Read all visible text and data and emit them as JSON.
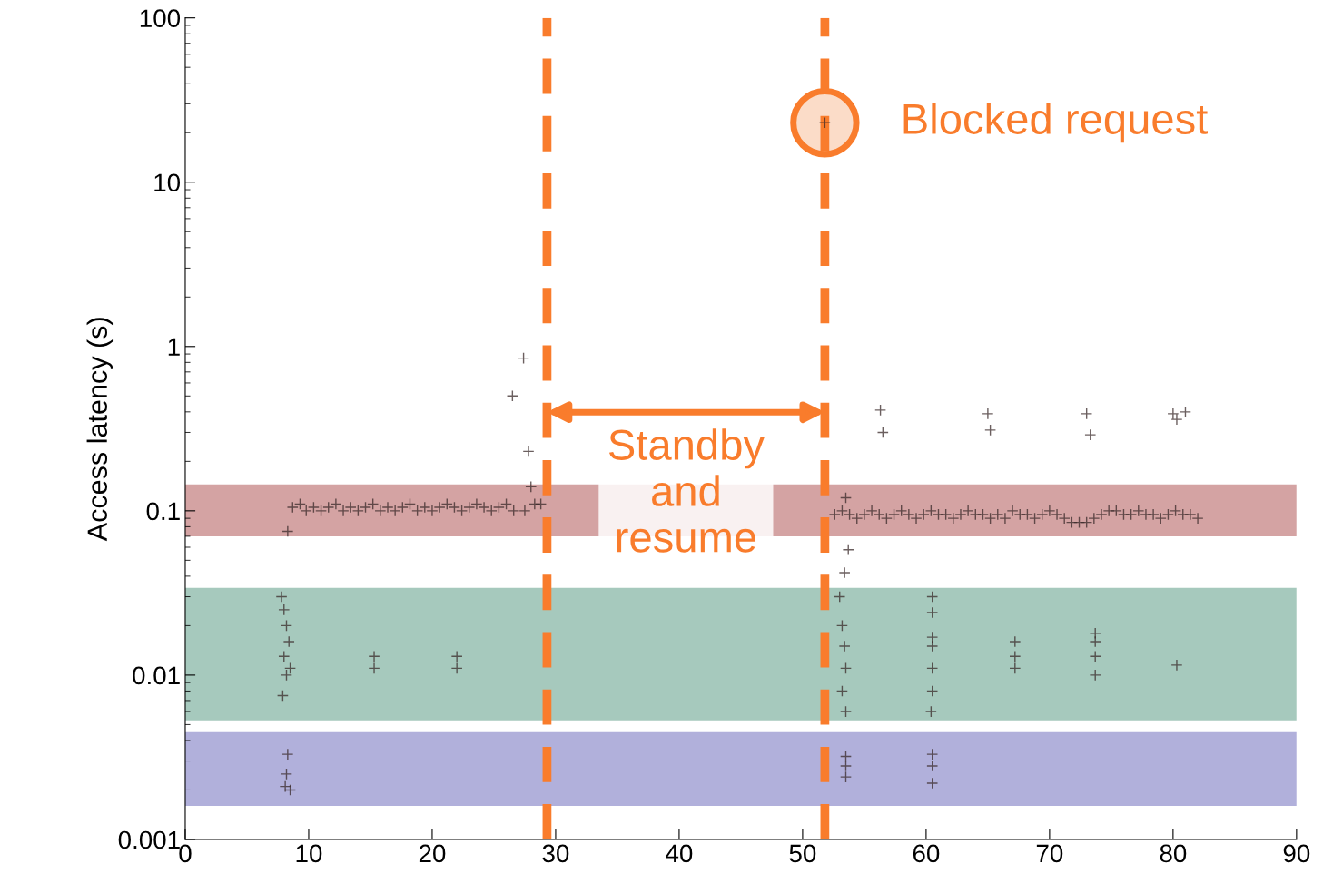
{
  "chart_data": {
    "type": "scatter",
    "ylabel": "Access latency (s)",
    "log": "y",
    "marker": "cross",
    "grid": false,
    "legend": false,
    "xlim": [
      0,
      90
    ],
    "xticks": [
      0,
      10,
      20,
      30,
      40,
      50,
      60,
      70,
      80,
      90
    ],
    "ylim": [
      0.001,
      100
    ],
    "yticks": [
      {
        "value": 0.001,
        "label": "0.001"
      },
      {
        "value": 0.01,
        "label": "0.01"
      },
      {
        "value": 0.1,
        "label": "0.1"
      },
      {
        "value": 1,
        "label": "1"
      },
      {
        "value": 10,
        "label": "10"
      },
      {
        "value": 100,
        "label": "100"
      }
    ],
    "series": [
      {
        "color": "#3a2a2a",
        "x": [
          8.7,
          9.3,
          9.8,
          10.4,
          11.0,
          11.6,
          12.2,
          12.8,
          13.4,
          14.0,
          14.6,
          15.2,
          15.8,
          16.4,
          17.0,
          17.6,
          18.2,
          18.8,
          19.4,
          20.0,
          20.6,
          21.2,
          21.8,
          22.4,
          23.0,
          23.6,
          24.2,
          24.8,
          25.4,
          26.0,
          26.6,
          27.5,
          28.3,
          28.8,
          8.3,
          26.5,
          27.4,
          27.8,
          28.0,
          52.6,
          53.2,
          53.8,
          54.4,
          55.0,
          55.6,
          56.2,
          56.8,
          57.4,
          58.0,
          58.6,
          59.2,
          59.8,
          60.4,
          61.0,
          61.6,
          62.2,
          62.8,
          63.4,
          64.0,
          64.6,
          65.2,
          65.8,
          66.4,
          67.0,
          67.6,
          68.2,
          68.8,
          69.4,
          70.0,
          70.6,
          71.2,
          71.8,
          72.4,
          73.0,
          73.6,
          74.2,
          74.8,
          75.4,
          76.0,
          76.6,
          77.2,
          77.8,
          78.4,
          79.0,
          79.6,
          80.2,
          80.8,
          81.4,
          82.0,
          56.3,
          56.5,
          65.0,
          65.2,
          73.0,
          73.3,
          80.0,
          80.3,
          81.0,
          53.5,
          53.7,
          53.4,
          7.8,
          8.0,
          8.2,
          8.4,
          8.0,
          8.5,
          8.2,
          7.9,
          15.3,
          15.3,
          22.0,
          22.0,
          53.0,
          53.2,
          53.4,
          53.5,
          53.2,
          53.5,
          60.5,
          60.5,
          60.5,
          60.5,
          60.5,
          60.5,
          60.4,
          67.2,
          67.2,
          67.2,
          73.7,
          73.7,
          73.7,
          73.7,
          80.3,
          8.3,
          8.2,
          8.1,
          8.5,
          53.5,
          53.5,
          53.5,
          60.5,
          60.5,
          60.5,
          51.8
        ],
        "values": [
          0.105,
          0.11,
          0.1,
          0.105,
          0.1,
          0.105,
          0.11,
          0.1,
          0.105,
          0.1,
          0.105,
          0.11,
          0.1,
          0.105,
          0.1,
          0.105,
          0.11,
          0.1,
          0.105,
          0.1,
          0.105,
          0.11,
          0.105,
          0.1,
          0.105,
          0.11,
          0.105,
          0.1,
          0.105,
          0.11,
          0.1,
          0.1,
          0.11,
          0.11,
          0.075,
          0.5,
          0.85,
          0.23,
          0.14,
          0.095,
          0.1,
          0.095,
          0.09,
          0.095,
          0.1,
          0.095,
          0.09,
          0.095,
          0.1,
          0.095,
          0.09,
          0.095,
          0.1,
          0.095,
          0.095,
          0.09,
          0.095,
          0.1,
          0.095,
          0.095,
          0.09,
          0.095,
          0.09,
          0.1,
          0.095,
          0.095,
          0.09,
          0.095,
          0.1,
          0.095,
          0.09,
          0.085,
          0.085,
          0.085,
          0.09,
          0.095,
          0.1,
          0.1,
          0.095,
          0.095,
          0.1,
          0.095,
          0.095,
          0.09,
          0.095,
          0.1,
          0.095,
          0.095,
          0.09,
          0.41,
          0.3,
          0.39,
          0.31,
          0.39,
          0.29,
          0.39,
          0.36,
          0.4,
          0.12,
          0.058,
          0.042,
          0.03,
          0.025,
          0.02,
          0.016,
          0.013,
          0.011,
          0.01,
          0.0075,
          0.013,
          0.011,
          0.013,
          0.011,
          0.03,
          0.02,
          0.015,
          0.011,
          0.008,
          0.006,
          0.03,
          0.024,
          0.017,
          0.015,
          0.011,
          0.008,
          0.006,
          0.016,
          0.013,
          0.011,
          0.018,
          0.016,
          0.013,
          0.01,
          0.0115,
          0.0033,
          0.0025,
          0.0021,
          0.002,
          0.0032,
          0.0028,
          0.0024,
          0.0033,
          0.0028,
          0.0022,
          23
        ]
      }
    ],
    "bands": [
      {
        "axis": "y",
        "from": 0.07,
        "to": 0.145,
        "color": "#d4a3a3"
      },
      {
        "axis": "y",
        "from": 0.0053,
        "to": 0.034,
        "color": "#a6c9bd"
      },
      {
        "axis": "y",
        "from": 0.0016,
        "to": 0.0045,
        "color": "#b1b0db"
      }
    ],
    "ref_lines": [
      {
        "axis": "x",
        "value": 29.3,
        "color": "#f97c2c",
        "line_style": "dashed"
      },
      {
        "axis": "x",
        "value": 51.8,
        "color": "#f97c2c",
        "line_style": "dashed"
      }
    ],
    "annotations": [
      {
        "text": "Blocked request",
        "x": 51.8,
        "y": 23
      },
      "Standby\nand\nresume"
    ]
  }
}
